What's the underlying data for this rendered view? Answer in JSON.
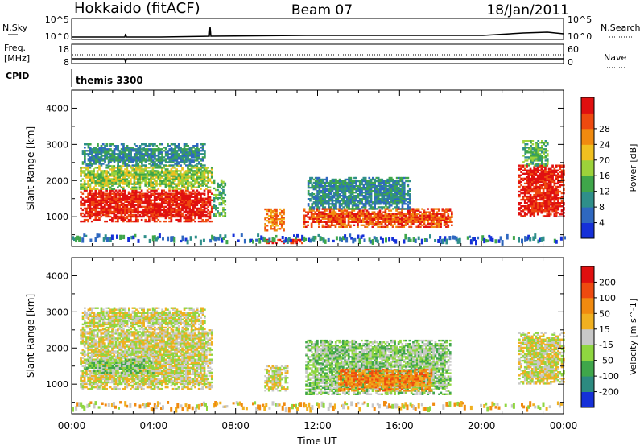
{
  "header": {
    "station": "Hokkaido (fitACF)",
    "beam": "Beam 07",
    "date": "18/Jan/2011"
  },
  "status_panels": {
    "nsky_label": "N.Sky",
    "nsearch_label": "N.Search",
    "nsky_ticks": [
      "10^5",
      "10^0"
    ],
    "nsearch_ticks": [
      "10^5",
      "10^0"
    ],
    "freq_label": [
      "Freq.",
      "[MHz]"
    ],
    "freq_ticks": [
      "18",
      "8"
    ],
    "nave_label": "Nave",
    "nave_ticks": [
      "60",
      "0"
    ],
    "cpid_label": "CPID",
    "cpid_value": "themis 3300"
  },
  "chart_data": [
    {
      "type": "heatmap",
      "quantity": "Power",
      "ylabel": "Slant Range [km]",
      "ylim": [
        180,
        4500
      ],
      "yticks": [
        "1000",
        "2000",
        "3000",
        "4000"
      ],
      "xlim_hours": [
        0,
        24
      ],
      "colorbar": {
        "title": "Power [dB]",
        "labels": [
          "4",
          "8",
          "12",
          "16",
          "20",
          "24",
          "28"
        ],
        "colors": [
          "#1530d8",
          "#2f68c0",
          "#2f8f8a",
          "#3fa64a",
          "#9cd23a",
          "#f0c020",
          "#f08a10",
          "#ee4a10",
          "#e01010"
        ]
      },
      "regions": [
        {
          "t0": 0.4,
          "t1": 6.8,
          "r0": 850,
          "r1": 1750,
          "level": 8
        },
        {
          "t0": 0.4,
          "t1": 6.8,
          "r0": 1750,
          "r1": 2400,
          "level": 4
        },
        {
          "t0": 0.5,
          "t1": 6.5,
          "r0": 2400,
          "r1": 3000,
          "level": 2
        },
        {
          "t0": 6.9,
          "t1": 7.5,
          "r0": 1000,
          "r1": 2000,
          "level": 3
        },
        {
          "t0": 9.4,
          "t1": 10.3,
          "r0": 600,
          "r1": 1200,
          "level": 6
        },
        {
          "t0": 9.4,
          "t1": 11.2,
          "r0": 250,
          "r1": 380,
          "level": 8
        },
        {
          "t0": 11.3,
          "t1": 18.5,
          "r0": 700,
          "r1": 1200,
          "level": 7
        },
        {
          "t0": 11.5,
          "t1": 16.5,
          "r0": 1200,
          "r1": 2100,
          "level": 2
        },
        {
          "t0": 21.8,
          "t1": 24.0,
          "r0": 1000,
          "r1": 2400,
          "level": 8
        },
        {
          "t0": 22.0,
          "t1": 23.2,
          "r0": 2400,
          "r1": 3100,
          "level": 3
        }
      ]
    },
    {
      "type": "heatmap",
      "quantity": "Velocity",
      "ylabel": "Slant Range [km]",
      "ylim": [
        180,
        4500
      ],
      "yticks": [
        "1000",
        "2000",
        "3000",
        "4000"
      ],
      "xlim_hours": [
        0,
        24
      ],
      "xticks": [
        "00:00",
        "04:00",
        "08:00",
        "12:00",
        "16:00",
        "20:00",
        "00:00"
      ],
      "xlabel": "Time UT",
      "colorbar": {
        "title": "Velocity [m s^-1]",
        "labels": [
          "200",
          "100",
          "50",
          "15",
          "-15",
          "-50",
          "-100",
          "-200"
        ],
        "colors": [
          "#1530d8",
          "#2c8a80",
          "#3fa64a",
          "#8fd640",
          "#c8c8c8",
          "#f0b020",
          "#f08a10",
          "#ee4a10",
          "#e01010"
        ]
      },
      "regions": [
        {
          "t0": 0.4,
          "t1": 6.8,
          "r0": 850,
          "r1": 2500,
          "level": 4
        },
        {
          "t0": 0.6,
          "t1": 4.0,
          "r0": 1300,
          "r1": 1700,
          "level": 3
        },
        {
          "t0": 0.5,
          "t1": 6.5,
          "r0": 2500,
          "r1": 3100,
          "level": 4
        },
        {
          "t0": 9.4,
          "t1": 10.5,
          "r0": 800,
          "r1": 1500,
          "level": 4
        },
        {
          "t0": 11.4,
          "t1": 18.5,
          "r0": 700,
          "r1": 2200,
          "level": 3
        },
        {
          "t0": 13.0,
          "t1": 17.5,
          "r0": 800,
          "r1": 1400,
          "level": 6
        },
        {
          "t0": 21.8,
          "t1": 24.0,
          "r0": 1000,
          "r1": 2400,
          "level": 4
        }
      ]
    }
  ]
}
